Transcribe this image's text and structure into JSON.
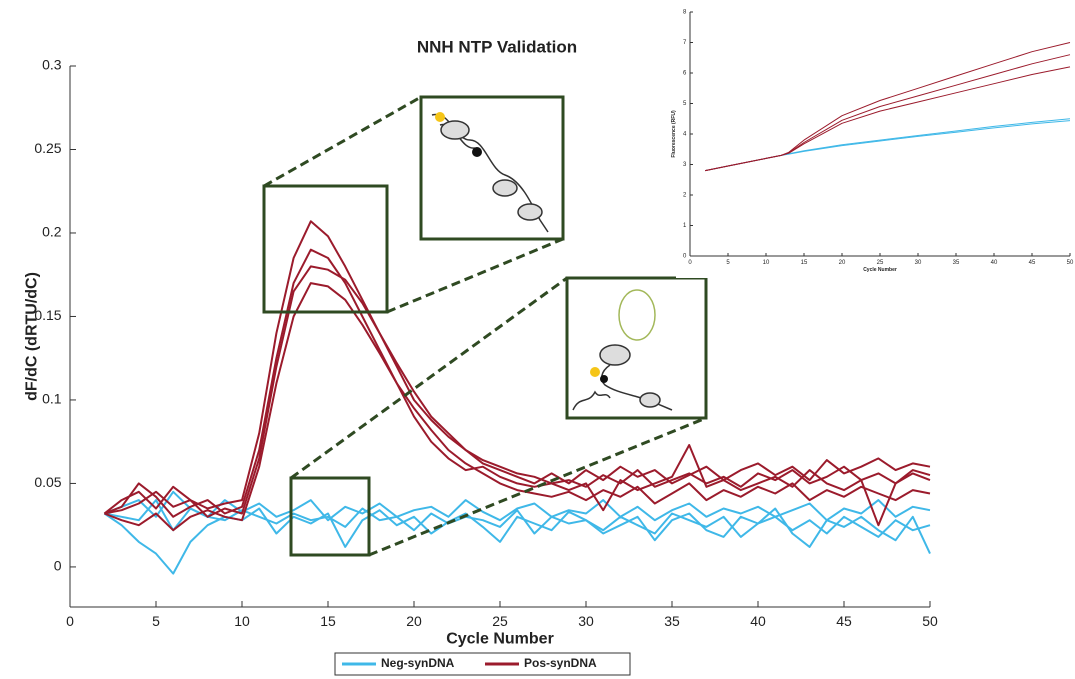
{
  "chart_data": [
    {
      "type": "line",
      "title": "NNH NTP Validation",
      "xlabel": "Cycle Number",
      "ylabel": "dF/dC (dRTU/dC)",
      "x": [
        2,
        3,
        4,
        5,
        6,
        7,
        8,
        9,
        10,
        11,
        12,
        13,
        14,
        15,
        16,
        17,
        18,
        19,
        20,
        21,
        22,
        23,
        24,
        25,
        26,
        27,
        28,
        29,
        30,
        31,
        32,
        33,
        34,
        35,
        36,
        37,
        38,
        39,
        40,
        41,
        42,
        43,
        44,
        45,
        46,
        47,
        48,
        49,
        50
      ],
      "xlim": [
        0,
        50
      ],
      "ylim": [
        -0.024,
        0.3
      ],
      "xticks": [
        0,
        5,
        10,
        15,
        20,
        25,
        30,
        35,
        40,
        45,
        50
      ],
      "yticks": [
        0,
        0.05,
        0.1,
        0.15,
        0.2,
        0.25,
        0.3
      ],
      "legend": "bottom",
      "series": [
        {
          "name": "Neg-synDNA",
          "color": "#3fb8e8",
          "values": [
            [
              0.032,
              0.03,
              0.028,
              0.04,
              0.022,
              0.035,
              0.03,
              0.028,
              0.034,
              0.03,
              0.026,
              0.032,
              0.028,
              0.03,
              0.024,
              0.035,
              0.028,
              0.03,
              0.022,
              0.032,
              0.026,
              0.03,
              0.028,
              0.024,
              0.034,
              0.02,
              0.03,
              0.026,
              0.028,
              0.022,
              0.03,
              0.025,
              0.02,
              0.032,
              0.028,
              0.024,
              0.03,
              0.018,
              0.026,
              0.03,
              0.022,
              0.028,
              0.02,
              0.03,
              0.024,
              0.018,
              0.028,
              0.022,
              0.025
            ],
            [
              0.032,
              0.025,
              0.015,
              0.008,
              -0.004,
              0.015,
              0.025,
              0.03,
              0.028,
              0.035,
              0.02,
              0.03,
              0.026,
              0.032,
              0.012,
              0.028,
              0.034,
              0.025,
              0.03,
              0.02,
              0.027,
              0.032,
              0.024,
              0.015,
              0.03,
              0.026,
              0.022,
              0.033,
              0.028,
              0.02,
              0.025,
              0.03,
              0.016,
              0.028,
              0.032,
              0.022,
              0.018,
              0.03,
              0.026,
              0.035,
              0.02,
              0.012,
              0.028,
              0.024,
              0.03,
              0.022,
              0.016,
              0.03,
              0.008
            ],
            [
              0.032,
              0.036,
              0.04,
              0.03,
              0.045,
              0.035,
              0.03,
              0.04,
              0.033,
              0.038,
              0.03,
              0.034,
              0.04,
              0.028,
              0.036,
              0.032,
              0.038,
              0.03,
              0.034,
              0.036,
              0.03,
              0.04,
              0.033,
              0.028,
              0.035,
              0.038,
              0.03,
              0.034,
              0.032,
              0.04,
              0.03,
              0.036,
              0.028,
              0.034,
              0.038,
              0.03,
              0.035,
              0.032,
              0.036,
              0.03,
              0.034,
              0.038,
              0.028,
              0.035,
              0.032,
              0.04,
              0.03,
              0.036,
              0.034
            ]
          ]
        },
        {
          "name": "Pos-synDNA",
          "color": "#9b1b2c",
          "values": [
            [
              0.032,
              0.04,
              0.045,
              0.035,
              0.048,
              0.04,
              0.035,
              0.038,
              0.04,
              0.08,
              0.14,
              0.185,
              0.207,
              0.198,
              0.18,
              0.16,
              0.14,
              0.12,
              0.1,
              0.088,
              0.078,
              0.07,
              0.064,
              0.06,
              0.056,
              0.054,
              0.05,
              0.052,
              0.048,
              0.055,
              0.05,
              0.058,
              0.048,
              0.052,
              0.056,
              0.05,
              0.054,
              0.048,
              0.056,
              0.052,
              0.058,
              0.05,
              0.054,
              0.06,
              0.052,
              0.056,
              0.05,
              0.058,
              0.055
            ],
            [
              0.032,
              0.028,
              0.025,
              0.032,
              0.022,
              0.03,
              0.034,
              0.03,
              0.028,
              0.06,
              0.11,
              0.15,
              0.17,
              0.168,
              0.16,
              0.145,
              0.128,
              0.11,
              0.095,
              0.082,
              0.07,
              0.062,
              0.056,
              0.05,
              0.046,
              0.044,
              0.042,
              0.045,
              0.04,
              0.046,
              0.042,
              0.048,
              0.038,
              0.044,
              0.05,
              0.04,
              0.046,
              0.042,
              0.048,
              0.044,
              0.05,
              0.04,
              0.046,
              0.042,
              0.048,
              0.044,
              0.04,
              0.046,
              0.044
            ],
            [
              0.032,
              0.036,
              0.05,
              0.042,
              0.03,
              0.036,
              0.04,
              0.032,
              0.036,
              0.07,
              0.125,
              0.17,
              0.19,
              0.185,
              0.17,
              0.15,
              0.13,
              0.11,
              0.09,
              0.075,
              0.065,
              0.058,
              0.06,
              0.054,
              0.05,
              0.048,
              0.05,
              0.046,
              0.05,
              0.034,
              0.052,
              0.046,
              0.05,
              0.054,
              0.073,
              0.048,
              0.052,
              0.046,
              0.05,
              0.054,
              0.048,
              0.058,
              0.05,
              0.046,
              0.052,
              0.025,
              0.05,
              0.056,
              0.052
            ],
            [
              0.032,
              0.034,
              0.038,
              0.045,
              0.036,
              0.04,
              0.03,
              0.035,
              0.032,
              0.065,
              0.12,
              0.165,
              0.18,
              0.178,
              0.172,
              0.158,
              0.14,
              0.122,
              0.105,
              0.09,
              0.08,
              0.07,
              0.062,
              0.058,
              0.054,
              0.05,
              0.056,
              0.05,
              0.058,
              0.052,
              0.06,
              0.054,
              0.058,
              0.05,
              0.055,
              0.06,
              0.052,
              0.058,
              0.062,
              0.055,
              0.06,
              0.052,
              0.064,
              0.056,
              0.06,
              0.065,
              0.058,
              0.062,
              0.06
            ]
          ]
        }
      ]
    },
    {
      "type": "line",
      "xlabel": "Cycle Number",
      "ylabel": "Fluorescence (RFU)",
      "x": [
        2,
        5,
        10,
        12,
        13,
        15,
        20,
        25,
        30,
        35,
        40,
        45,
        50
      ],
      "xlim": [
        0,
        50
      ],
      "ylim": [
        0,
        8
      ],
      "xticks": [
        0,
        5,
        10,
        15,
        20,
        25,
        30,
        35,
        40,
        45,
        50
      ],
      "yticks": [
        0,
        1,
        2,
        3,
        4,
        5,
        6,
        7,
        8
      ],
      "series": [
        {
          "color": "#3fb8e8",
          "values": [
            [
              2.8,
              2.95,
              3.2,
              3.3,
              3.35,
              3.45,
              3.65,
              3.8,
              3.95,
              4.1,
              4.25,
              4.38,
              4.5
            ],
            [
              2.8,
              2.95,
              3.2,
              3.3,
              3.34,
              3.43,
              3.62,
              3.77,
              3.92,
              4.06,
              4.2,
              4.33,
              4.44
            ]
          ]
        },
        {
          "color": "#9b1b2c",
          "values": [
            [
              2.8,
              2.95,
              3.2,
              3.3,
              3.4,
              3.8,
              4.6,
              5.1,
              5.5,
              5.9,
              6.3,
              6.7,
              7.0
            ],
            [
              2.8,
              2.95,
              3.2,
              3.3,
              3.38,
              3.72,
              4.45,
              4.9,
              5.25,
              5.6,
              5.95,
              6.3,
              6.6
            ],
            [
              2.8,
              2.95,
              3.2,
              3.3,
              3.37,
              3.68,
              4.35,
              4.75,
              5.05,
              5.35,
              5.65,
              5.95,
              6.2
            ]
          ]
        }
      ]
    }
  ]
}
